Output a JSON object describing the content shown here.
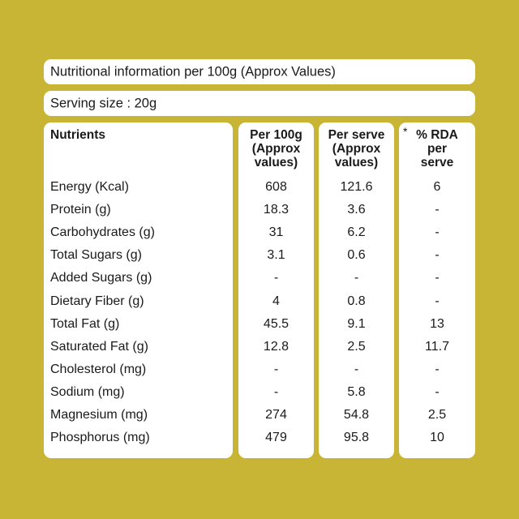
{
  "title": "Nutritional information per 100g (Approx Values)",
  "serving": "Serving size : 20g",
  "headers": {
    "nutrients": "Nutrients",
    "per100": "Per 100g\n(Approx\nvalues)",
    "perserve": "Per serve\n(Approx\nvalues)",
    "rda_star": "*",
    "rda": "% RDA\nper\nserve"
  },
  "rows": [
    {
      "name": "Energy (Kcal)",
      "per100": "608",
      "perserve": "121.6",
      "rda": "6"
    },
    {
      "name": "Protein (g)",
      "per100": "18.3",
      "perserve": "3.6",
      "rda": "-"
    },
    {
      "name": "Carbohydrates (g)",
      "per100": "31",
      "perserve": "6.2",
      "rda": "-"
    },
    {
      "name": "Total Sugars (g)",
      "per100": "3.1",
      "perserve": "0.6",
      "rda": "-"
    },
    {
      "name": "Added Sugars (g)",
      "per100": "-",
      "perserve": "-",
      "rda": "-"
    },
    {
      "name": "Dietary Fiber (g)",
      "per100": "4",
      "perserve": "0.8",
      "rda": "-"
    },
    {
      "name": "Total Fat (g)",
      "per100": "45.5",
      "perserve": "9.1",
      "rda": "13"
    },
    {
      "name": "Saturated Fat (g)",
      "per100": "12.8",
      "perserve": "2.5",
      "rda": "11.7"
    },
    {
      "name": "Cholesterol (mg)",
      "per100": "-",
      "perserve": "-",
      "rda": "-"
    },
    {
      "name": "Sodium (mg)",
      "per100": "-",
      "perserve": "5.8",
      "rda": "-"
    },
    {
      "name": "Magnesium (mg)",
      "per100": "274",
      "perserve": "54.8",
      "rda": "2.5"
    },
    {
      "name": "Phosphorus (mg)",
      "per100": "479",
      "perserve": "95.8",
      "rda": "10"
    }
  ],
  "colors": {
    "background": "#c8b535",
    "panel": "#ffffff",
    "text": "#1a1a1a"
  }
}
